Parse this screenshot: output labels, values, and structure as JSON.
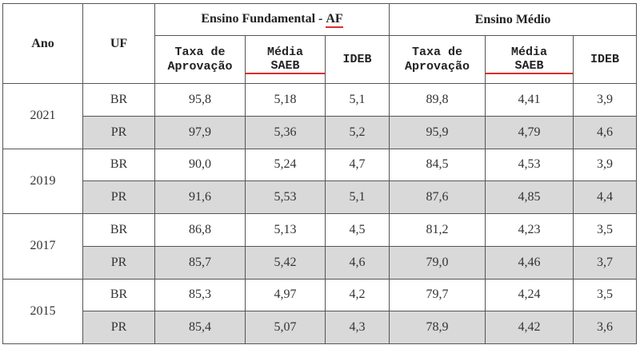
{
  "header": {
    "ano": "Ano",
    "uf": "UF",
    "group_ef_prefix": "Ensino Fundamental - ",
    "group_ef_underlined": "AF",
    "group_em": "Ensino Médio",
    "ef": {
      "taxa_l1": "Taxa de",
      "taxa_l2": "Aprovação",
      "media_l1": "Média",
      "media_l2": "SAEB",
      "ideb": "IDEB"
    },
    "em": {
      "taxa_l1": "Taxa de",
      "taxa_l2": "Aprovação",
      "media_l1": "Média",
      "media_l2": "SAEB",
      "ideb": "IDEB"
    }
  },
  "rows": [
    {
      "year": "2021",
      "uf": "BR",
      "ef_taxa": "95,8",
      "ef_media": "5,18",
      "ef_ideb": "5,1",
      "em_taxa": "89,8",
      "em_media": "4,41",
      "em_ideb": "3,9"
    },
    {
      "uf": "PR",
      "ef_taxa": "97,9",
      "ef_media": "5,36",
      "ef_ideb": "5,2",
      "em_taxa": "95,9",
      "em_media": "4,79",
      "em_ideb": "4,6"
    },
    {
      "year": "2019",
      "uf": "BR",
      "ef_taxa": "90,0",
      "ef_media": "5,24",
      "ef_ideb": "4,7",
      "em_taxa": "84,5",
      "em_media": "4,53",
      "em_ideb": "3,9"
    },
    {
      "uf": "PR",
      "ef_taxa": "91,6",
      "ef_media": "5,53",
      "ef_ideb": "5,1",
      "em_taxa": "87,6",
      "em_media": "4,85",
      "em_ideb": "4,4"
    },
    {
      "year": "2017",
      "uf": "BR",
      "ef_taxa": "86,8",
      "ef_media": "5,13",
      "ef_ideb": "4,5",
      "em_taxa": "81,2",
      "em_media": "4,23",
      "em_ideb": "3,5"
    },
    {
      "uf": "PR",
      "ef_taxa": "85,7",
      "ef_media": "5,42",
      "ef_ideb": "4,6",
      "em_taxa": "79,0",
      "em_media": "4,46",
      "em_ideb": "3,7"
    },
    {
      "year": "2015",
      "uf": "BR",
      "ef_taxa": "85,3",
      "ef_media": "4,97",
      "ef_ideb": "4,2",
      "em_taxa": "79,7",
      "em_media": "4,24",
      "em_ideb": "3,5"
    },
    {
      "uf": "PR",
      "ef_taxa": "85,4",
      "ef_media": "5,07",
      "ef_ideb": "4,3",
      "em_taxa": "78,9",
      "em_media": "4,42",
      "em_ideb": "3,6"
    }
  ],
  "colors": {
    "pr_row_fill": "#d9d9d9",
    "spellcheck_underline": "#e02b2b",
    "border": "#555555"
  }
}
